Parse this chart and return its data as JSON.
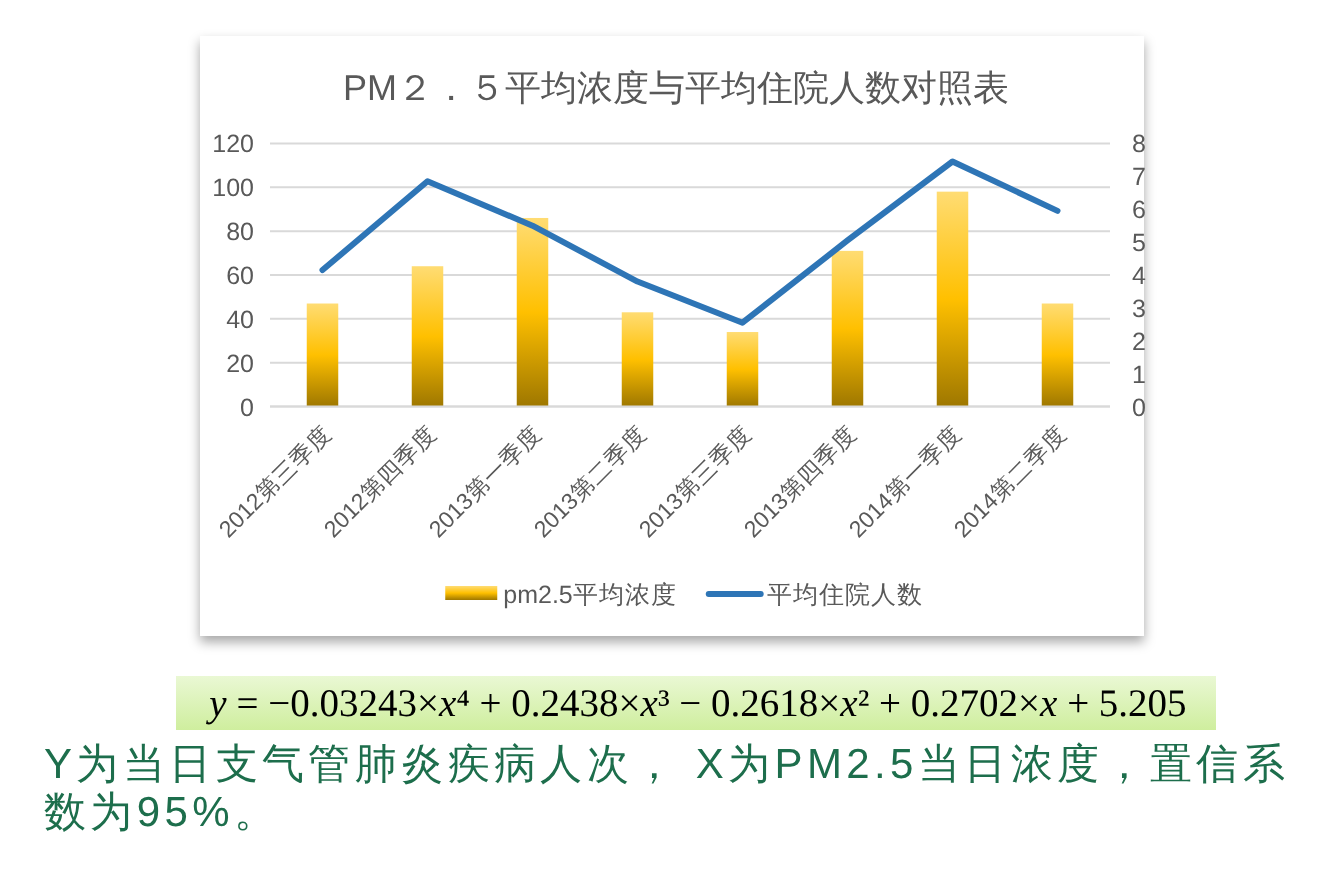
{
  "chart_data": {
    "type": "bar",
    "title": "PM２．５平均浓度与平均住院人数对照表",
    "categories": [
      "2012第三季度",
      "2012第四季度",
      "2013第一季度",
      "2013第二季度",
      "2013第三季度",
      "2013第四季度",
      "2014第一季度",
      "2014第二季度"
    ],
    "series": [
      {
        "name": "pm2.5平均浓度",
        "color": "#ffc000",
        "values": [
          47,
          64,
          86,
          43,
          34,
          71,
          98,
          47
        ]
      },
      {
        "name": "平均住院人数",
        "type": "line",
        "axis": "y2",
        "color": "#2e75b6",
        "values": [
          4.15,
          6.85,
          5.5,
          3.8,
          2.55,
          5.05,
          7.45,
          5.95
        ]
      }
    ],
    "ylim": [
      0,
      120
    ],
    "yticks": [
      0,
      20,
      40,
      60,
      80,
      100,
      120
    ],
    "y2lim": [
      0,
      8
    ],
    "y2ticks": [
      0,
      1,
      2,
      3,
      4,
      5,
      6,
      7,
      8
    ],
    "grid": "y",
    "legend": "bottom",
    "annotations": [
      "y = −0.03243×x⁴ + 0.2438×x³ − 0.2618×x² + 0.2702×x + 5.205",
      "Y为当日支气管肺炎疾病人次， X为PM2.5当日浓度，置信系数为95%。"
    ]
  }
}
